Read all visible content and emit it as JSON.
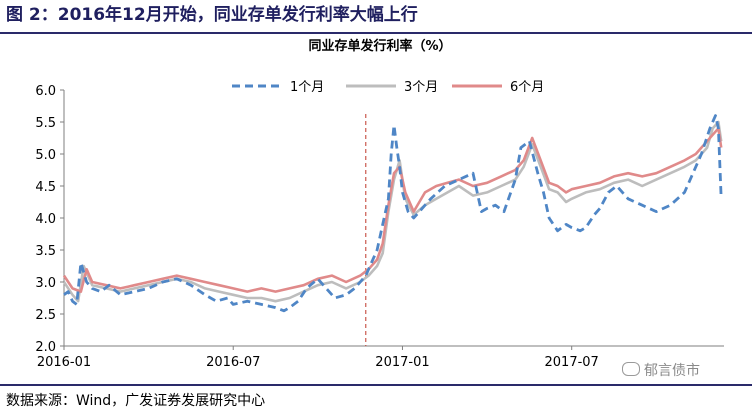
{
  "figure_title": "图 2：2016年12月开始，同业存单发行利率大幅上行",
  "source": "数据来源：Wind，广发证券发展研究中心",
  "watermark": "郁言债市",
  "colors": {
    "one_month": "#4f86c6",
    "three_month": "#bdbdbd",
    "six_month": "#e08a8a",
    "vline": "#c0392b",
    "header": "#1f1f5f"
  },
  "chart_data": {
    "type": "line",
    "title": "同业存单发行利率（%）",
    "xlabel": "",
    "ylabel": "",
    "ylim": [
      2.0,
      6.0
    ],
    "yticks": [
      "2.0",
      "2.5",
      "3.0",
      "3.5",
      "4.0",
      "4.5",
      "5.0",
      "5.5",
      "6.0"
    ],
    "xlim": [
      0,
      23.4
    ],
    "xticks": [
      {
        "x": 0,
        "label": "2016-01"
      },
      {
        "x": 6,
        "label": "2016-07"
      },
      {
        "x": 12,
        "label": "2017-01"
      },
      {
        "x": 18,
        "label": "2017-07"
      }
    ],
    "x_unit": "months since 2016-01",
    "vertical_marker": {
      "x": 10.7
    },
    "legend_position": "top",
    "grid": false,
    "series": [
      {
        "name": "1个月",
        "style": "dashed",
        "color": "#4f86c6",
        "x": [
          0,
          0.15,
          0.3,
          0.45,
          0.6,
          0.8,
          1.0,
          1.3,
          1.6,
          2.0,
          2.5,
          3.0,
          3.5,
          4.0,
          4.5,
          5.0,
          5.4,
          5.8,
          6.0,
          6.5,
          7.0,
          7.5,
          7.8,
          8.0,
          8.3,
          8.6,
          9.0,
          9.3,
          9.6,
          10.0,
          10.3,
          10.5,
          10.7,
          10.9,
          11.1,
          11.3,
          11.5,
          11.6,
          11.7,
          11.8,
          11.9,
          12.0,
          12.2,
          12.4,
          12.6,
          12.8,
          13.0,
          13.5,
          14.0,
          14.5,
          14.8,
          15.0,
          15.3,
          15.6,
          16.0,
          16.2,
          16.5,
          16.8,
          17.0,
          17.2,
          17.5,
          17.8,
          18.0,
          18.3,
          18.5,
          18.8,
          19.0,
          19.3,
          19.6,
          20.0,
          20.5,
          21.0,
          21.5,
          22.0,
          22.3,
          22.6,
          22.9,
          23.1,
          23.2,
          23.3
        ],
        "values": [
          2.8,
          2.85,
          2.7,
          2.65,
          3.3,
          3.0,
          2.9,
          2.85,
          2.95,
          2.8,
          2.85,
          2.9,
          3.0,
          3.05,
          2.95,
          2.8,
          2.7,
          2.75,
          2.65,
          2.7,
          2.65,
          2.6,
          2.55,
          2.6,
          2.7,
          2.9,
          3.05,
          2.9,
          2.75,
          2.8,
          2.9,
          3.0,
          3.1,
          3.3,
          3.5,
          3.9,
          4.3,
          5.0,
          5.45,
          5.1,
          4.8,
          4.4,
          4.1,
          4.0,
          4.1,
          4.2,
          4.3,
          4.5,
          4.6,
          4.7,
          4.1,
          4.15,
          4.2,
          4.1,
          4.6,
          5.1,
          5.2,
          4.7,
          4.4,
          4.0,
          3.8,
          3.9,
          3.85,
          3.8,
          3.85,
          4.05,
          4.15,
          4.4,
          4.5,
          4.3,
          4.2,
          4.1,
          4.2,
          4.4,
          4.7,
          5.0,
          5.4,
          5.6,
          5.4,
          4.3
        ]
      },
      {
        "name": "3个月",
        "style": "solid",
        "color": "#bdbdbd",
        "x": [
          0,
          0.3,
          0.5,
          0.7,
          1.0,
          1.5,
          2.0,
          2.5,
          3.0,
          3.5,
          4.0,
          4.5,
          5.0,
          5.5,
          6.0,
          6.5,
          7.0,
          7.5,
          8.0,
          8.5,
          9.0,
          9.5,
          10.0,
          10.5,
          10.8,
          11.1,
          11.3,
          11.5,
          11.7,
          11.9,
          12.1,
          12.4,
          12.8,
          13.2,
          13.6,
          14.0,
          14.5,
          15.0,
          15.5,
          16.0,
          16.3,
          16.6,
          16.9,
          17.2,
          17.5,
          17.8,
          18.0,
          18.5,
          19.0,
          19.5,
          20.0,
          20.5,
          21.0,
          21.5,
          22.0,
          22.4,
          22.8,
          23.0,
          23.2,
          23.3
        ],
        "values": [
          3.0,
          2.8,
          2.7,
          3.25,
          2.95,
          2.9,
          2.85,
          2.9,
          2.95,
          3.0,
          3.05,
          3.0,
          2.9,
          2.85,
          2.8,
          2.75,
          2.75,
          2.7,
          2.75,
          2.85,
          2.95,
          3.0,
          2.9,
          3.0,
          3.1,
          3.25,
          3.45,
          4.1,
          4.6,
          4.9,
          4.3,
          4.05,
          4.2,
          4.3,
          4.4,
          4.5,
          4.35,
          4.4,
          4.5,
          4.6,
          4.8,
          5.15,
          4.8,
          4.45,
          4.4,
          4.25,
          4.3,
          4.4,
          4.45,
          4.55,
          4.6,
          4.5,
          4.6,
          4.7,
          4.8,
          4.9,
          5.1,
          5.4,
          5.5,
          5.2
        ]
      },
      {
        "name": "6个月",
        "style": "solid",
        "color": "#e08a8a",
        "x": [
          0,
          0.3,
          0.6,
          0.8,
          1.0,
          1.5,
          2.0,
          2.5,
          3.0,
          3.5,
          4.0,
          4.5,
          5.0,
          5.5,
          6.0,
          6.5,
          7.0,
          7.5,
          8.0,
          8.5,
          9.0,
          9.5,
          10.0,
          10.5,
          10.8,
          11.1,
          11.3,
          11.5,
          11.7,
          11.9,
          12.1,
          12.4,
          12.8,
          13.2,
          13.6,
          14.0,
          14.5,
          15.0,
          15.5,
          16.0,
          16.3,
          16.6,
          16.9,
          17.2,
          17.5,
          17.8,
          18.0,
          18.5,
          19.0,
          19.5,
          20.0,
          20.5,
          21.0,
          21.5,
          22.0,
          22.4,
          22.8,
          23.0,
          23.2,
          23.3
        ],
        "values": [
          3.1,
          2.9,
          2.85,
          3.2,
          3.0,
          2.95,
          2.9,
          2.95,
          3.0,
          3.05,
          3.1,
          3.05,
          3.0,
          2.95,
          2.9,
          2.85,
          2.9,
          2.85,
          2.9,
          2.95,
          3.05,
          3.1,
          3.0,
          3.1,
          3.2,
          3.35,
          3.6,
          4.2,
          4.7,
          4.8,
          4.4,
          4.1,
          4.4,
          4.5,
          4.55,
          4.6,
          4.5,
          4.55,
          4.65,
          4.75,
          4.9,
          5.25,
          4.9,
          4.55,
          4.5,
          4.4,
          4.45,
          4.5,
          4.55,
          4.65,
          4.7,
          4.65,
          4.7,
          4.8,
          4.9,
          5.0,
          5.2,
          5.3,
          5.4,
          5.1
        ]
      }
    ]
  }
}
